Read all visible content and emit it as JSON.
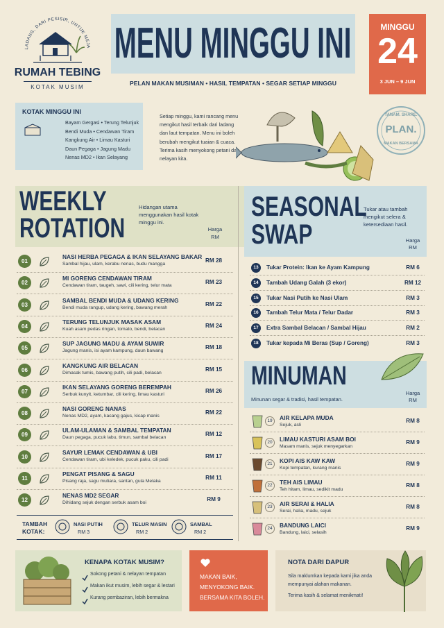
{
  "logo": {
    "arc": "DARI LADANG, DARI PESISIR, UNTUK MEJA ANDA",
    "name": "RUMAH TEBING",
    "sub": "KOTAK MUSIM"
  },
  "header": {
    "title": "MENU MINGGU INI",
    "tagline": "PELAN MAKAN MUSIMAN • HASIL TEMPATAN • SEGAR SETIAP MINGGU",
    "week_label": "MINGGU",
    "week_number": "24",
    "week_dates": "3 JUN – 9 JUN"
  },
  "box": {
    "title": "KOTAK MINGGU INI",
    "items": [
      "Bayam Gergasi • Terung Telunjuk",
      "Bendi Muda • Cendawan Tiram",
      "Kangkung Air • Limau Kasturi",
      "Daun Pegaga • Jagung Madu",
      "Nenas MD2 • Ikan Selayang"
    ]
  },
  "intro": "Setiap minggu, kami rancang menu mengikut hasil terbaik dari ladang dan laut tempatan. Menu ini boleh berubah mengikut tuaian & cuaca. Terima kasih menyokong petani dan nelayan kita.",
  "stamp": {
    "top": "TANAM. SHARE.",
    "main": "PLAN.",
    "bottom": "MAKAN BERSAMA"
  },
  "weekly": {
    "title": [
      "WEEKLY",
      "ROTATION"
    ],
    "description": "Hidangan utama menggunakan hasil kotak minggu ini.",
    "price_header": [
      "Harga",
      "RM"
    ],
    "items": [
      {
        "no": "01",
        "name": "NASI HERBA PEGAGA & IKAN SELAYANG BAKAR",
        "desc": "Sambal hijau, ulam, kerabu nenas, budu mangga",
        "price": "RM 28"
      },
      {
        "no": "02",
        "name": "MI GORENG CENDAWAN TIRAM",
        "desc": "Cendawan tiram, taugeh, sawi, cili kering, telur mata",
        "price": "RM 23"
      },
      {
        "no": "03",
        "name": "SAMBAL BENDI MUDA & UDANG KERING",
        "desc": "Bendi muda rangup, udang kering, bawang merah",
        "price": "RM 22"
      },
      {
        "no": "04",
        "name": "TERUNG TELUNJUK MASAK ASAM",
        "desc": "Kuah asam pedas ringan, tomato, bendi, belacan",
        "price": "RM 24"
      },
      {
        "no": "05",
        "name": "SUP JAGUNG MADU & AYAM SUWIR",
        "desc": "Jagung manis, isi ayam kampung, daun bawang",
        "price": "RM 18"
      },
      {
        "no": "06",
        "name": "KANGKUNG AIR BELACAN",
        "desc": "Dimasak tumis, bawang putih, cili padi, belacan",
        "price": "RM 15"
      },
      {
        "no": "07",
        "name": "IKAN SELAYANG GORENG BEREMPAH",
        "desc": "Serbuk kunyit, ketumbar, cili kering, limau kasturi",
        "price": "RM 26"
      },
      {
        "no": "08",
        "name": "NASI GORENG NANAS",
        "desc": "Nenas MD2, ayam, kacang gajus, kicap manis",
        "price": "RM 22"
      },
      {
        "no": "09",
        "name": "ULAM-ULAMAN & SAMBAL TEMPATAN",
        "desc": "Daun pegaga, pucuk labu, timun, sambal belacan",
        "price": "RM 12"
      },
      {
        "no": "10",
        "name": "SAYUR LEMAK CENDAWAN & UBI",
        "desc": "Cendawan tiram, ubi keledek, pucuk paku, cili padi",
        "price": "RM 17"
      },
      {
        "no": "11",
        "name": "PENGAT PISANG & SAGU",
        "desc": "Pisang raja, sagu mutiara, santan, gula Melaka",
        "price": "RM 11"
      },
      {
        "no": "12",
        "name": "NENAS MD2 SEGAR",
        "desc": "Dihidang sejuk dengan serbuk asam boi",
        "price": "RM 9"
      }
    ],
    "addons_label": [
      "TAMBAH",
      "KOTAK:"
    ],
    "addons": [
      {
        "name": "NASI PUTIH",
        "price": "RM 3"
      },
      {
        "name": "TELUR MASIN",
        "price": "RM 2"
      },
      {
        "name": "SAMBAL",
        "price": "RM 2"
      }
    ]
  },
  "seasonal": {
    "title": [
      "SEASONAL",
      "SWAP"
    ],
    "description": "Tukar atau tambah mengikut selera & ketersediaan hasil.",
    "price_header": [
      "Harga",
      "RM"
    ],
    "items": [
      {
        "no": "13",
        "name": "Tukar Protein: Ikan ke Ayam Kampung",
        "price": "RM 6"
      },
      {
        "no": "14",
        "name": "Tambah Udang Galah (3 ekor)",
        "price": "RM 12"
      },
      {
        "no": "15",
        "name": "Tukar Nasi Putih ke Nasi Ulam",
        "price": "RM 3"
      },
      {
        "no": "16",
        "name": "Tambah Telur Mata / Telur Dadar",
        "price": "RM 3"
      },
      {
        "no": "17",
        "name": "Extra Sambal Belacan / Sambal Hijau",
        "price": "RM 2"
      },
      {
        "no": "18",
        "name": "Tukar kepada Mi Beras (Sup / Goreng)",
        "price": "RM 3"
      }
    ]
  },
  "drinks": {
    "title": "MINUMAN",
    "description": "Minunan segar & tradisi, hasil tempatan.",
    "price_header": [
      "Harga",
      "RM"
    ],
    "items": [
      {
        "no": "19",
        "name": "AIR KELAPA MUDA",
        "desc": "Sejuk, asli",
        "price": "RM 8"
      },
      {
        "no": "20",
        "name": "LIMAU KASTURI ASAM BOI",
        "desc": "Masam manis, sejuk menyegarkan",
        "price": "RM 9"
      },
      {
        "no": "21",
        "name": "KOPI AIS KAW KAW",
        "desc": "Kopi tempatan, kurang manis",
        "price": "RM 9"
      },
      {
        "no": "22",
        "name": "TEH AIS LIMAU",
        "desc": "Teh hitam, limau, sedikit madu",
        "price": "RM 8"
      },
      {
        "no": "23",
        "name": "AIR SERAI & HALIA",
        "desc": "Serai, halia, madu, sejuk",
        "price": "RM 8"
      },
      {
        "no": "24",
        "name": "BANDUNG LAICI",
        "desc": "Bandung, laici, selasih",
        "price": "RM 9"
      }
    ]
  },
  "footer": {
    "why_title": "KENAPA KOTAK MUSIM?",
    "why_points": [
      "Sokong petani & nelayan tempatan",
      "Makan ikut musim, lebih segar & lestari",
      "Kurang pembaziran, lebih bermakna"
    ],
    "slogan": [
      "MAKAN BAIK,",
      "MENYOKONG BAIK.",
      "BERSAMA KITA BOLEH."
    ],
    "note_title": "NOTA DARI DAPUR",
    "note_text": "Sila maklumkan kepada kami jika anda mempunyai alahan makanan.",
    "note_thanks": "Terima kasih & selamat menikmati!"
  }
}
